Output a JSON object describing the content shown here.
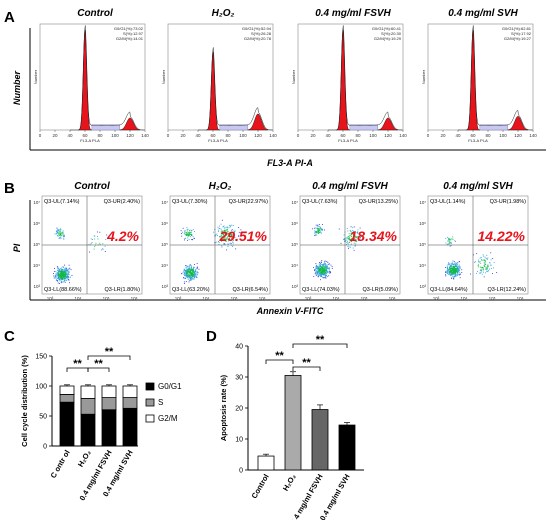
{
  "panel_letters": [
    "A",
    "B",
    "C",
    "D"
  ],
  "chart_data": [
    {
      "panel": "A",
      "type": "area",
      "xlabel": "FL3-A PI-A",
      "ylabel": "Number",
      "small_xlabel": "FL3-A PI-A",
      "small_ylabel": "Number",
      "x_ticks": [
        "0",
        "20",
        "40",
        "60",
        "80",
        "100",
        "120",
        "140"
      ],
      "plots": [
        {
          "title": "Control",
          "stats": [
            "G0/G1(%):73.02",
            "S(%):12.97",
            "G2/M(%):14.01"
          ],
          "g1_peak": 1.0,
          "g2_peak": 0.15
        },
        {
          "title": "H₂O₂",
          "stats": [
            "G0/G1(%):52.94",
            "S(%):26.28",
            "G2/M(%):20.78"
          ],
          "g1_peak": 0.78,
          "g2_peak": 0.2
        },
        {
          "title": "0.4 mg/ml FSVH",
          "stats": [
            "G0/G1(%):60.41",
            "S(%):20.30",
            "G2/M(%):19.29"
          ],
          "g1_peak": 1.0,
          "g2_peak": 0.15
        },
        {
          "title": "0.4 mg/ml SVH",
          "stats": [
            "G0/G1(%):62.81",
            "S(%):17.92",
            "G2/M(%):19.27"
          ],
          "g1_peak": 1.0,
          "g2_peak": 0.17
        }
      ]
    },
    {
      "panel": "B",
      "type": "scatter",
      "xlabel": "Annexin V-FITC",
      "ylabel": "PI",
      "x_ticks": [
        "10³",
        "10⁴",
        "10⁵",
        "10⁶"
      ],
      "y_ticks": [
        "10⁷",
        "10⁶",
        "10⁵",
        "10⁴",
        "10³"
      ],
      "plots": [
        {
          "title": "Control",
          "UL": "Q3-UL(7.14%)",
          "UR": "Q3-UR(2.40%)",
          "LL": "Q3-LL(88.66%)",
          "LR": "Q3-LR(1.80%)",
          "apoptosis": "4.2%"
        },
        {
          "title": "H₂O₂",
          "UL": "Q3-UL(7.30%)",
          "UR": "Q3-UR(22.97%)",
          "LL": "Q3-LL(63.20%)",
          "LR": "Q3-LR(6.54%)",
          "apoptosis": "29.51%"
        },
        {
          "title": "0.4 mg/ml FSVH",
          "UL": "Q3-UL(7.63%)",
          "UR": "Q3-UR(13.25%)",
          "LL": "Q3-LL(74.03%)",
          "LR": "Q3-LR(5.09%)",
          "apoptosis": "18.34%"
        },
        {
          "title": "0.4 mg/ml SVH",
          "UL": "Q3-UL(1.14%)",
          "UR": "Q3-UR(1.98%)",
          "LL": "Q3-LL(84.64%)",
          "LR": "Q3-LR(12.24%)",
          "apoptosis": "14.22%"
        }
      ]
    },
    {
      "panel": "C",
      "type": "bar",
      "ylabel": "Cell cycle distribution (%)",
      "categories": [
        "C ontr ol",
        "H₂O₂",
        "0.4 mg/ml FSVH",
        "0.4 mg/ml SVH"
      ],
      "ylim": [
        0,
        150
      ],
      "y_ticks": [
        0,
        50,
        100,
        150
      ],
      "series": [
        {
          "name": "G0/G1",
          "values": [
            73.02,
            52.94,
            60.41,
            62.81
          ],
          "color": "#000000"
        },
        {
          "name": "S",
          "values": [
            12.97,
            26.28,
            20.3,
            17.92
          ],
          "color": "#999999"
        },
        {
          "name": "G2/M",
          "values": [
            14.01,
            20.78,
            19.29,
            19.27
          ],
          "color": "#ffffff"
        }
      ],
      "significance": [
        {
          "from": 0,
          "to": 1,
          "label": "**"
        },
        {
          "from": 1,
          "to": 2,
          "label": "**"
        },
        {
          "from": 1,
          "to": 3,
          "label": "**"
        }
      ],
      "legend": "right"
    },
    {
      "panel": "D",
      "type": "bar",
      "ylabel": "Apoptosis rate (%)",
      "categories": [
        "Control",
        "H₂O₂",
        "0.4 mg/ml FSVH",
        "0.4 mg/ml SVH"
      ],
      "values": [
        4.5,
        30.5,
        19.5,
        14.5
      ],
      "errors": [
        0.6,
        1.2,
        1.5,
        0.8
      ],
      "colors": [
        "#ffffff",
        "#aaaaaa",
        "#666666",
        "#000000"
      ],
      "ylim": [
        0,
        40
      ],
      "y_ticks": [
        0,
        10,
        20,
        30,
        40
      ],
      "significance": [
        {
          "from": 0,
          "to": 1,
          "label": "**"
        },
        {
          "from": 1,
          "to": 2,
          "label": "**"
        },
        {
          "from": 1,
          "to": 3,
          "label": "**"
        }
      ]
    }
  ]
}
